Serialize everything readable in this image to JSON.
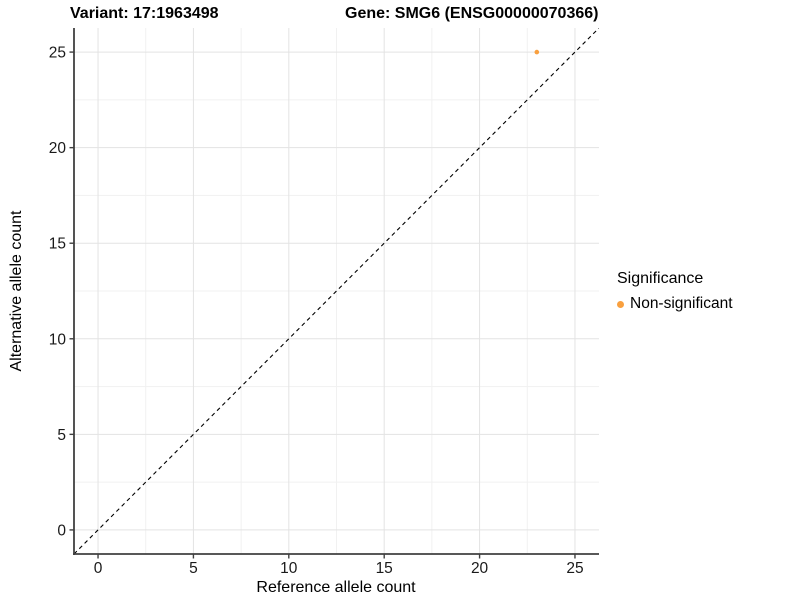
{
  "header": {
    "variant_title": "Variant: 17:1963498",
    "gene_title": "Gene: SMG6 (ENSG00000070366)"
  },
  "chart_data": {
    "type": "scatter",
    "title": "Variant: 17:1963498   Gene: SMG6 (ENSG00000070366)",
    "xlabel": "Reference allele count",
    "ylabel": "Alternative allele count",
    "xlim": [
      -1.26,
      26.26
    ],
    "ylim": [
      -1.26,
      26.26
    ],
    "x_ticks": [
      0,
      5,
      10,
      15,
      20,
      25
    ],
    "y_ticks": [
      0,
      5,
      10,
      15,
      20,
      25
    ],
    "x_minor_ticks": [
      2.5,
      7.5,
      12.5,
      17.5,
      22.5
    ],
    "y_minor_ticks": [
      2.5,
      7.5,
      12.5,
      17.5,
      22.5
    ],
    "grid": true,
    "series": [
      {
        "name": "Non-significant",
        "color": "#F9A03F",
        "points": [
          {
            "x": 23,
            "y": 25
          }
        ]
      }
    ],
    "reference_line": {
      "slope": 1,
      "intercept": 0,
      "style": "dashed",
      "color": "#000000"
    },
    "legend": {
      "title": "Significance",
      "position": "right",
      "entries": [
        {
          "label": "Non-significant",
          "color": "#F9A03F"
        }
      ]
    }
  },
  "colors": {
    "background": "#ffffff",
    "grid_major": "#e3e3e3",
    "grid_minor": "#f1f1f1",
    "axis_line": "#404040",
    "tick_label": "#1a1a1a",
    "point": "#F9A03F"
  }
}
